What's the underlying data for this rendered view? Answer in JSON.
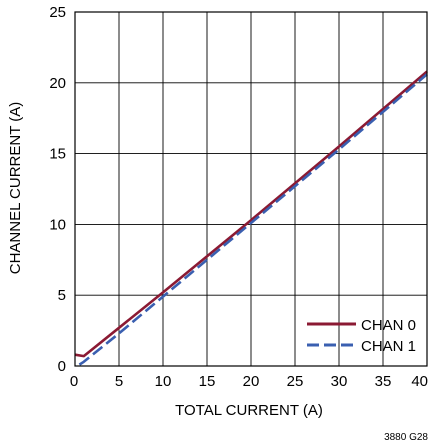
{
  "chart_data": {
    "type": "line",
    "title": "",
    "xlabel": "TOTAL CURRENT (A)",
    "ylabel": "CHANNEL CURRENT (A)",
    "xlim": [
      0,
      40
    ],
    "ylim": [
      0,
      25
    ],
    "x_ticks": [
      0,
      5,
      10,
      15,
      20,
      25,
      30,
      35,
      40
    ],
    "y_ticks": [
      0,
      5,
      10,
      15,
      20,
      25
    ],
    "grid": true,
    "legend_position": "bottom-right",
    "series": [
      {
        "name": "CHAN 0",
        "color": "#8b1a33",
        "line_style": "solid",
        "x": [
          0,
          1,
          5,
          10,
          20,
          30,
          40
        ],
        "y": [
          0.8,
          0.7,
          2.7,
          5.2,
          10.3,
          15.5,
          20.8
        ]
      },
      {
        "name": "CHAN 1",
        "color": "#3a5fb0",
        "line_style": "dashed",
        "x": [
          0.5,
          1,
          5,
          10,
          20,
          30,
          40
        ],
        "y": [
          0.1,
          0.3,
          2.3,
          4.9,
          10.1,
          15.3,
          20.6
        ]
      }
    ],
    "figure_code": "3880 G28"
  }
}
